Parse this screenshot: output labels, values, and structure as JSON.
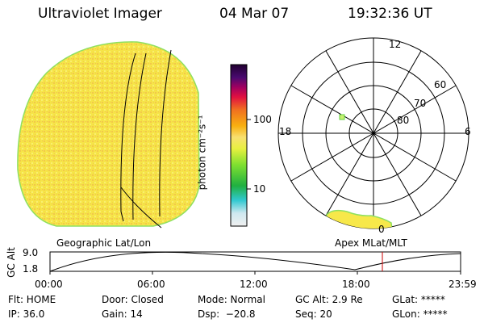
{
  "header": {
    "title": "Ultraviolet Imager",
    "date": "04 Mar 07",
    "time": "19:32:36 UT"
  },
  "colorbar": {
    "label": "photon cm⁻²s⁻¹",
    "ticks": [
      "100",
      "10"
    ]
  },
  "polar": {
    "mlt_labels": [
      "12",
      "18",
      "6",
      "0"
    ],
    "lat_labels": [
      "60",
      "70",
      "80"
    ]
  },
  "panel_titles": {
    "left": "Geographic Lat/Lon",
    "right": "Apex MLat/MLT"
  },
  "altitude_plot": {
    "ylabel": "GC Alt",
    "y_ticks": [
      "9.0",
      "1.8"
    ],
    "x_ticks": [
      "00:00",
      "06:00",
      "12:00",
      "18:00",
      "23:59"
    ]
  },
  "info": {
    "row1": {
      "flt": "Flt: HOME",
      "door": "Door: Closed",
      "mode": "Mode: Normal",
      "gcalt": "GC Alt: 2.9 Re",
      "glat": "GLat: *****"
    },
    "row2": {
      "ip": "IP: 36.0",
      "gain": "Gain: 14",
      "dsp": "Dsp:  −20.8",
      "seq": "Seq: 20",
      "glon": "GLon: *****"
    }
  },
  "colors": {
    "disk_fill": "#f7e84a",
    "disk_edge": "#8fe060",
    "grid": "#000000",
    "marker": "#cc0000"
  }
}
